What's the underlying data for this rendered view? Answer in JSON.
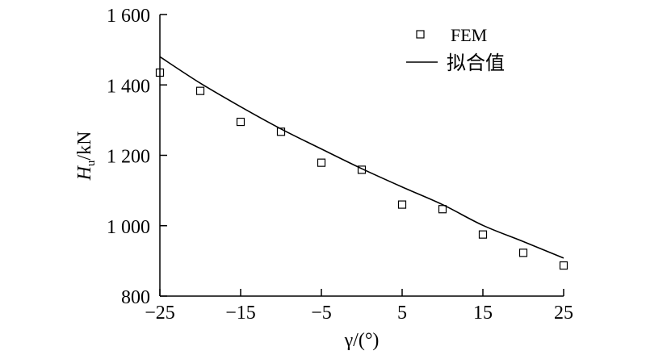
{
  "chart_data": {
    "type": "scatter",
    "xlabel": "γ/(°)",
    "ylabel": "Hu/kN",
    "ylabel_parts": {
      "symbol": "H",
      "subscript": "u",
      "unit": "/kN"
    },
    "xlim": [
      -25,
      25
    ],
    "ylim": [
      800,
      1600
    ],
    "x_ticks": [
      -25,
      -15,
      -5,
      5,
      15,
      25
    ],
    "x_tick_labels": [
      "−25",
      "−15",
      "−5",
      "5",
      "15",
      "25"
    ],
    "y_ticks": [
      800,
      1000,
      1200,
      1400,
      1600
    ],
    "y_tick_labels": [
      "800",
      "1 000",
      "1 200",
      "1 400",
      "1 600"
    ],
    "grid": false,
    "legend_position": "top-right",
    "series": [
      {
        "name": "FEM",
        "kind": "markers",
        "marker": "open-square",
        "x": [
          -25,
          -20,
          -15,
          -10,
          -5,
          0,
          5,
          10,
          15,
          20,
          25
        ],
        "y": [
          1435,
          1383,
          1295,
          1267,
          1179,
          1159,
          1060,
          1047,
          975,
          923,
          887
        ]
      },
      {
        "name": "拟合值",
        "kind": "line",
        "x": [
          -25,
          -20,
          -15,
          -10,
          -5,
          0,
          5,
          10,
          15,
          20,
          25
        ],
        "y": [
          1480,
          1405,
          1338,
          1275,
          1218,
          1162,
          1110,
          1060,
          1001,
          955,
          908
        ]
      }
    ],
    "colors": {
      "axis": "#000000",
      "line": "#000000",
      "marker": "#000000"
    }
  }
}
